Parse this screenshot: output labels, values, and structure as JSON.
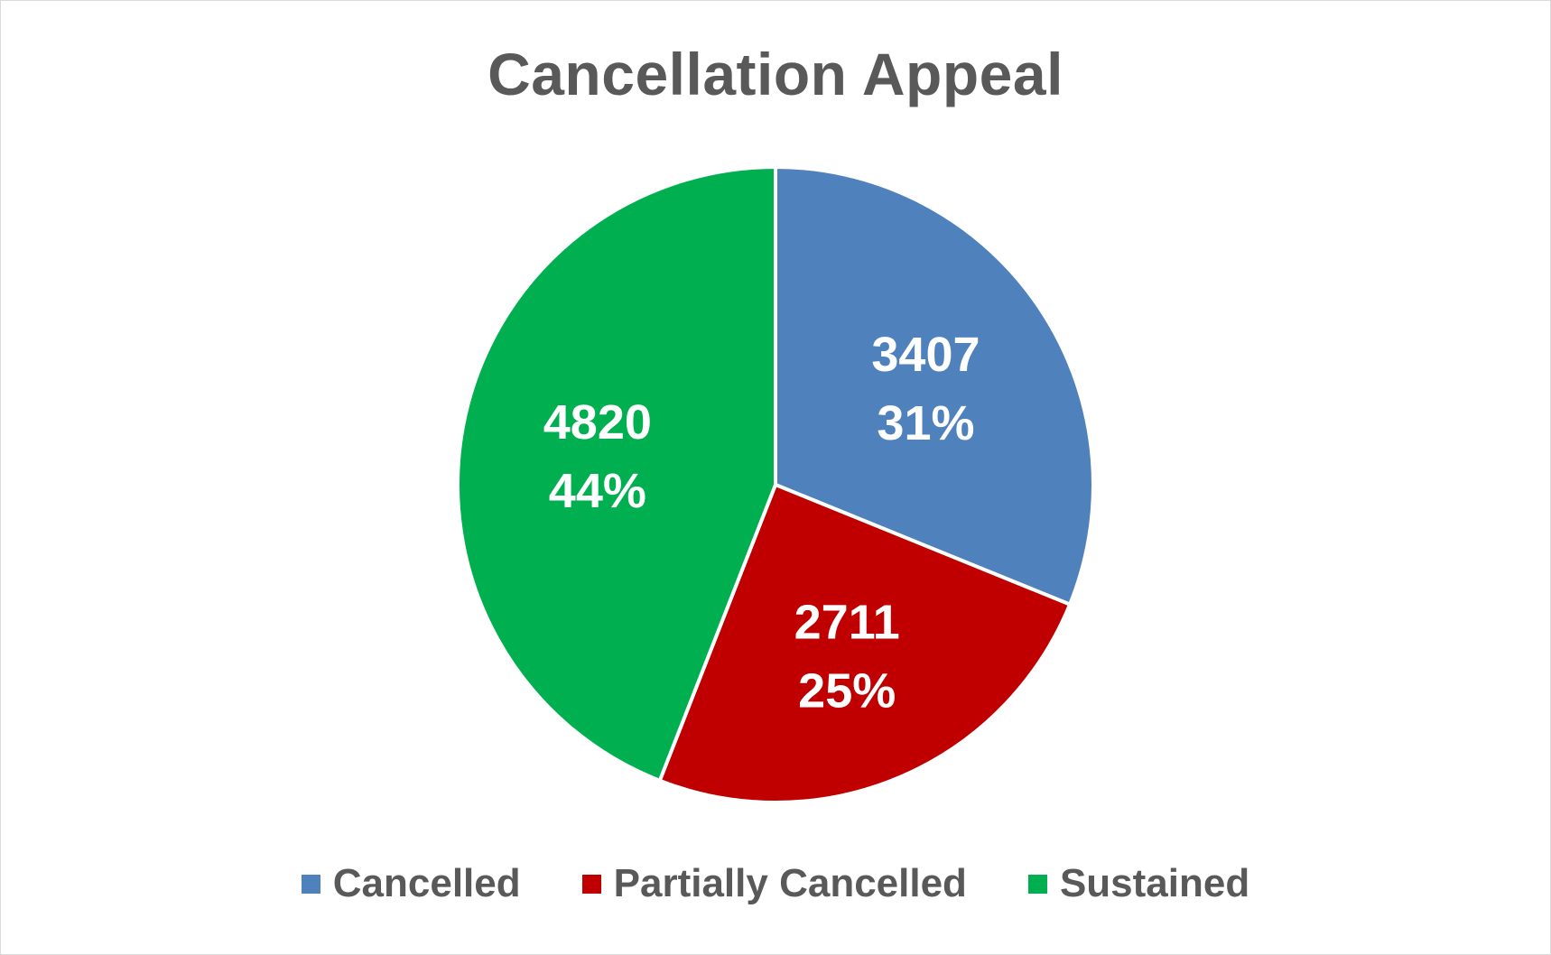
{
  "chart_data": {
    "type": "pie",
    "title": "Cancellation Appeal",
    "slices": [
      {
        "name": "Cancelled",
        "value": 3407,
        "label_value": "3407",
        "label_percent": "31%",
        "color": "#4f81bd"
      },
      {
        "name": "Partially Cancelled",
        "value": 2711,
        "label_value": "2711",
        "label_percent": "25%",
        "color": "#c00000"
      },
      {
        "name": "Sustained",
        "value": 4820,
        "label_value": "4820",
        "label_percent": "44%",
        "color": "#00b050"
      }
    ],
    "legend_position": "bottom",
    "start_angle": "12 o'clock",
    "direction": "clockwise"
  }
}
